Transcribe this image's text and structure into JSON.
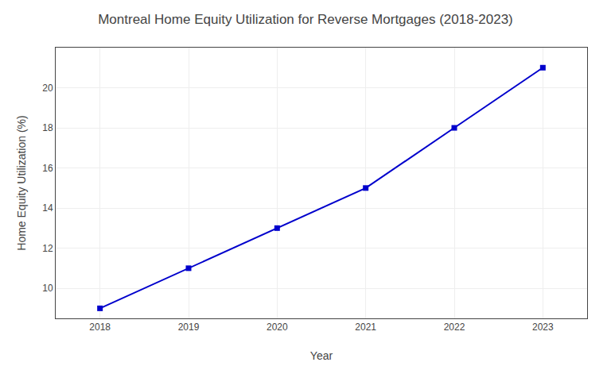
{
  "chart_data": {
    "type": "line",
    "title": "Montreal Home Equity Utilization for Reverse Mortgages (2018-2023)",
    "xlabel": "Year",
    "ylabel": "Home Equity Utilization (%)",
    "x": [
      2018,
      2019,
      2020,
      2021,
      2022,
      2023
    ],
    "values": [
      9.0,
      11.0,
      13.0,
      15.0,
      18.0,
      21.0
    ],
    "color": "#0000CC",
    "marker": "square",
    "line_style": "solid",
    "xlim": [
      2017.5,
      2023.5
    ],
    "xticks": [
      2018,
      2019,
      2020,
      2021,
      2022,
      2023
    ],
    "ylim": [
      8.5,
      22
    ],
    "yticks": [
      10,
      12,
      14,
      16,
      18,
      20
    ],
    "grid": true
  }
}
